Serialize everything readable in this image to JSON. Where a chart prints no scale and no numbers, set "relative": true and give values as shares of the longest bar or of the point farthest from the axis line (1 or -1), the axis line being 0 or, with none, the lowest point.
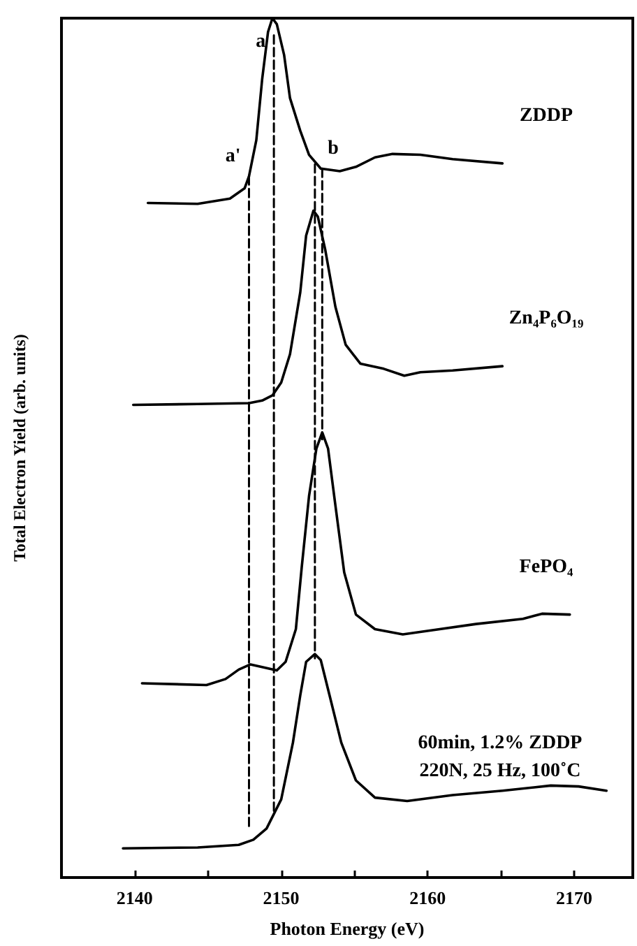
{
  "chart_data": {
    "type": "line",
    "relative": true,
    "xlabel": "Photon Energy (eV)",
    "ylabel": "Total Electron Yield (arb. units)",
    "xlim": [
      2135,
      2174
    ],
    "xticks": [
      2140,
      {
        "value": 2145,
        "label": null
      },
      2150,
      {
        "value": 2155,
        "label": null
      },
      2160,
      {
        "value": 2165,
        "label": null
      },
      2170
    ],
    "marker": "none",
    "grid": false,
    "legend": false,
    "series": [
      {
        "name": "ZDDP",
        "color": "#000000",
        "x": [
          2140.9,
          2144.3,
          2146.5,
          2147.5,
          2147.8,
          2148.3,
          2148.7,
          2149.1,
          2149.4,
          2149.7,
          2150.2,
          2150.6,
          2151.3,
          2151.9,
          2152.7,
          2154.0,
          2155.1,
          2156.4,
          2157.6,
          2159.5,
          2161.7,
          2165.1
        ],
        "values": [
          0.785,
          0.784,
          0.79,
          0.802,
          0.816,
          0.858,
          0.929,
          0.984,
          1,
          0.993,
          0.957,
          0.907,
          0.869,
          0.841,
          0.825,
          0.822,
          0.827,
          0.838,
          0.842,
          0.841,
          0.836,
          0.831
        ]
      },
      {
        "name": "Zn₄P₆O₁₉",
        "color": "#000000",
        "x": [
          2139.9,
          2144.3,
          2147.8,
          2148.7,
          2149.4,
          2150.0,
          2150.6,
          2151.3,
          2151.7,
          2152.2,
          2152.5,
          2153.0,
          2153.7,
          2154.4,
          2155.4,
          2157.0,
          2158.4,
          2159.5,
          2161.7,
          2165.1
        ],
        "values": [
          0.55,
          0.551,
          0.552,
          0.555,
          0.561,
          0.576,
          0.609,
          0.681,
          0.747,
          0.776,
          0.769,
          0.731,
          0.664,
          0.62,
          0.598,
          0.592,
          0.584,
          0.588,
          0.59,
          0.595
        ]
      },
      {
        "name": "FePO₄",
        "color": "#000000",
        "x": [
          2140.5,
          2144.9,
          2146.2,
          2147.1,
          2147.9,
          2148.7,
          2149.7,
          2150.3,
          2151.0,
          2151.4,
          2151.9,
          2152.4,
          2152.8,
          2153.2,
          2153.7,
          2154.3,
          2155.1,
          2156.4,
          2158.3,
          2160.4,
          2163.3,
          2166.5,
          2167.8,
          2169.7
        ],
        "values": [
          0.226,
          0.224,
          0.231,
          0.242,
          0.248,
          0.245,
          0.241,
          0.251,
          0.289,
          0.361,
          0.444,
          0.499,
          0.518,
          0.499,
          0.433,
          0.355,
          0.306,
          0.289,
          0.283,
          0.288,
          0.295,
          0.301,
          0.307,
          0.306
        ]
      },
      {
        "name": "60min, 1.2% ZDDP",
        "color": "#000000",
        "x": [
          2139.2,
          2144.3,
          2147.1,
          2148.1,
          2149.0,
          2150.0,
          2150.8,
          2151.3,
          2151.7,
          2152.3,
          2152.7,
          2153.3,
          2154.1,
          2155.1,
          2156.4,
          2158.6,
          2161.7,
          2165.1,
          2168.4,
          2170.3,
          2172.2
        ],
        "values": [
          0.034,
          0.035,
          0.038,
          0.044,
          0.057,
          0.091,
          0.157,
          0.212,
          0.251,
          0.26,
          0.253,
          0.212,
          0.157,
          0.113,
          0.093,
          0.089,
          0.096,
          0.101,
          0.107,
          0.106,
          0.101
        ]
      },
      {
        "color": "#000000",
        "line_style": "dashed",
        "x": [
          2147.8,
          2147.8
        ],
        "values": [
          0.816,
          0.057
        ]
      },
      {
        "color": "#000000",
        "line_style": "dashed",
        "x": [
          2149.5,
          2149.5
        ],
        "values": [
          0.98,
          0.075
        ]
      },
      {
        "color": "#000000",
        "line_style": "dashed",
        "x": [
          2152.3,
          2152.3
        ],
        "values": [
          0.83,
          0.255
        ]
      },
      {
        "color": "#000000",
        "line_style": "dashed",
        "x": [
          2152.8,
          2152.8
        ],
        "values": [
          0.825,
          0.51
        ]
      }
    ],
    "annotations": [
      "220N, 25 Hz, 100˚C",
      {
        "text": "a",
        "x": 2149.5,
        "y": 0.95
      },
      {
        "text": "a'",
        "x": 2147.8,
        "y": 0.816
      },
      {
        "text": "b",
        "x": 2152.8,
        "y": 0.825
      }
    ]
  }
}
